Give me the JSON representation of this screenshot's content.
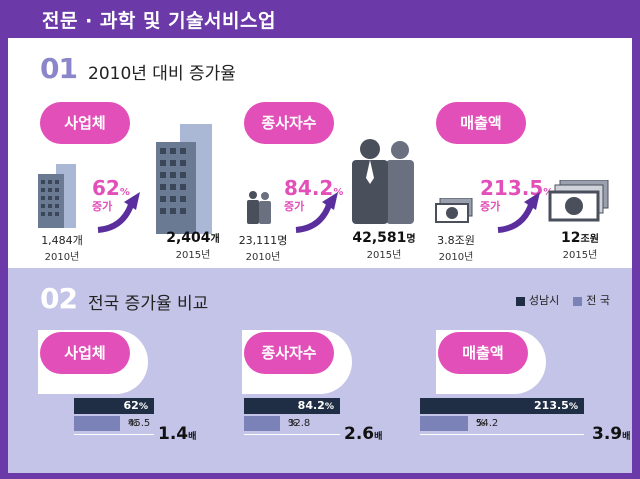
{
  "header": {
    "title": "전문 · 과학 및 기술서비스업"
  },
  "section1": {
    "number": "01",
    "title": "2010년 대비 증가율",
    "items": [
      {
        "label": "사업체",
        "left_value": "1,484",
        "left_unit": "개",
        "left_year": "2010년",
        "pct": "62",
        "pct_unit": "%",
        "pct_label": "증가",
        "right_value": "2,404",
        "right_unit": "개",
        "right_year": "2015년",
        "icon": "building-icon"
      },
      {
        "label": "종사자수",
        "left_value": "23,111",
        "left_unit": "명",
        "left_year": "2010년",
        "pct": "84.2",
        "pct_unit": "%",
        "pct_label": "증가",
        "right_value": "42,581",
        "right_unit": "명",
        "right_year": "2015년",
        "icon": "people-icon"
      },
      {
        "label": "매출액",
        "left_value": "3.8",
        "left_unit": "조원",
        "left_year": "2010년",
        "pct": "213.5",
        "pct_unit": "%",
        "pct_label": "증가",
        "right_value": "12",
        "right_unit": "조원",
        "right_year": "2015년",
        "icon": "money-icon"
      }
    ]
  },
  "section2": {
    "number": "02",
    "title": "전국 증가율 비교",
    "legend": [
      {
        "label": "성남시",
        "color": "#1f2e45"
      },
      {
        "label": "전 국",
        "color": "#7a82b8"
      }
    ],
    "items": [
      {
        "label": "사업체",
        "seongnam": "62",
        "seongnam_fraction": 0.62,
        "national": "45.5",
        "national_fraction": 0.455,
        "unit": "%",
        "multiple": "1.4",
        "multiple_unit": "배"
      },
      {
        "label": "종사자수",
        "seongnam": "84.2",
        "seongnam_fraction": 0.842,
        "national": "32.8",
        "national_fraction": 0.328,
        "unit": "%",
        "multiple": "2.6",
        "multiple_unit": "배"
      },
      {
        "label": "매출액",
        "seongnam": "213.5",
        "seongnam_fraction": 2.135,
        "national": "54.2",
        "national_fraction": 0.542,
        "unit": "%",
        "multiple": "3.9",
        "multiple_unit": "배"
      }
    ]
  }
}
